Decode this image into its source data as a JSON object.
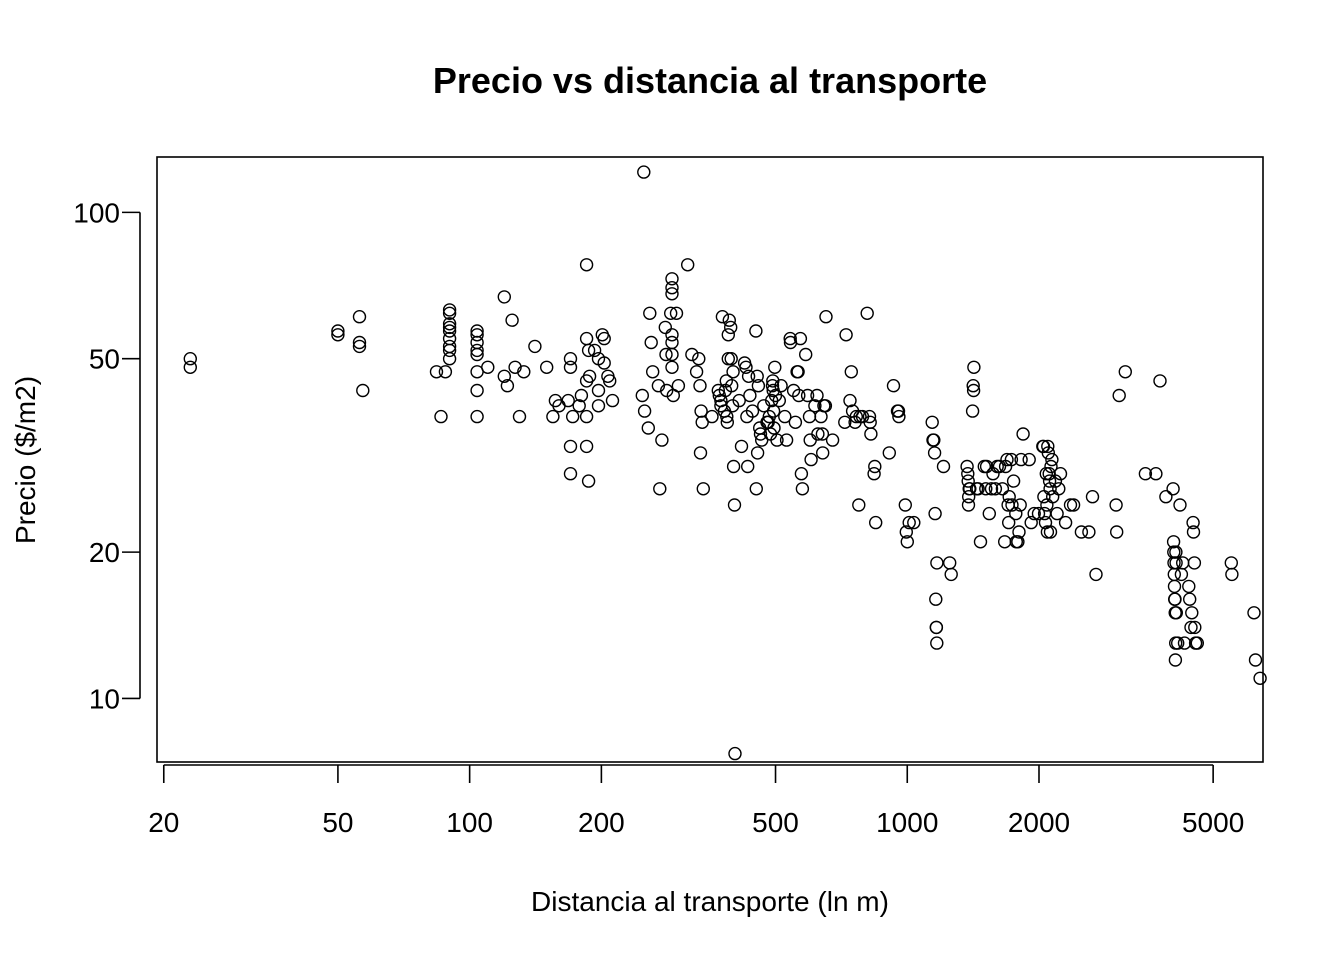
{
  "chart_data": {
    "type": "scatter",
    "title": "Precio vs distancia al transporte",
    "xlabel": "Distancia al transporte (ln m)",
    "ylabel": "Precio ($/m2)",
    "x_scale": "log",
    "y_scale": "log",
    "xlim": [
      19.3,
      6500
    ],
    "ylim": [
      7.4,
      130
    ],
    "x_ticks": [
      20,
      50,
      100,
      200,
      500,
      1000,
      2000,
      5000
    ],
    "x_tick_labels": [
      "20",
      "50",
      "100",
      "200",
      "500",
      "1000",
      "2000",
      "5000"
    ],
    "y_ticks": [
      10,
      20,
      50,
      100
    ],
    "y_tick_labels": [
      "10",
      "20",
      "50",
      "100"
    ],
    "grid": false,
    "marker": "open-circle",
    "point_color": "#000000",
    "points": [
      [
        23,
        50
      ],
      [
        23,
        48
      ],
      [
        50,
        57
      ],
      [
        50,
        56
      ],
      [
        56,
        61
      ],
      [
        56,
        54
      ],
      [
        56,
        53
      ],
      [
        57,
        43
      ],
      [
        84,
        47
      ],
      [
        86,
        38
      ],
      [
        88,
        47
      ],
      [
        90,
        63
      ],
      [
        90,
        62
      ],
      [
        90,
        59
      ],
      [
        90,
        58
      ],
      [
        90,
        57
      ],
      [
        90,
        55
      ],
      [
        90,
        53
      ],
      [
        90,
        52
      ],
      [
        90,
        50
      ],
      [
        104,
        57
      ],
      [
        104,
        56
      ],
      [
        104,
        54
      ],
      [
        104,
        52
      ],
      [
        104,
        51
      ],
      [
        104,
        47
      ],
      [
        104,
        43
      ],
      [
        104,
        38
      ],
      [
        110,
        48
      ],
      [
        120,
        67
      ],
      [
        120,
        46
      ],
      [
        122,
        44
      ],
      [
        125,
        60
      ],
      [
        127,
        48
      ],
      [
        130,
        38
      ],
      [
        133,
        47
      ],
      [
        141,
        53
      ],
      [
        150,
        48
      ],
      [
        155,
        38
      ],
      [
        157,
        41
      ],
      [
        160,
        40
      ],
      [
        168,
        41
      ],
      [
        170,
        50
      ],
      [
        170,
        48
      ],
      [
        172,
        38
      ],
      [
        170,
        33
      ],
      [
        170,
        29
      ],
      [
        178,
        40
      ],
      [
        180,
        42
      ],
      [
        185,
        78
      ],
      [
        185,
        55
      ],
      [
        187,
        52
      ],
      [
        185,
        45
      ],
      [
        188,
        46
      ],
      [
        185,
        38
      ],
      [
        185,
        33
      ],
      [
        187,
        28
      ],
      [
        193,
        52
      ],
      [
        197,
        50
      ],
      [
        197,
        43
      ],
      [
        197,
        40
      ],
      [
        201,
        56
      ],
      [
        203,
        55
      ],
      [
        203,
        49
      ],
      [
        207,
        46
      ],
      [
        209,
        45
      ],
      [
        212,
        41
      ],
      [
        250,
        121
      ],
      [
        248,
        42
      ],
      [
        251,
        39
      ],
      [
        256,
        36
      ],
      [
        258,
        62
      ],
      [
        260,
        54
      ],
      [
        262,
        47
      ],
      [
        270,
        44
      ],
      [
        272,
        27
      ],
      [
        275,
        34
      ],
      [
        280,
        58
      ],
      [
        281,
        51
      ],
      [
        282,
        43
      ],
      [
        288,
        62
      ],
      [
        290,
        73
      ],
      [
        290,
        70
      ],
      [
        290,
        68
      ],
      [
        290,
        56
      ],
      [
        290,
        54
      ],
      [
        290,
        51
      ],
      [
        290,
        48
      ],
      [
        292,
        42
      ],
      [
        297,
        62
      ],
      [
        300,
        44
      ],
      [
        315,
        78
      ],
      [
        322,
        51
      ],
      [
        330,
        47
      ],
      [
        334,
        50
      ],
      [
        336,
        44
      ],
      [
        337,
        32
      ],
      [
        338,
        39
      ],
      [
        340,
        37
      ],
      [
        342,
        27
      ],
      [
        358,
        38
      ],
      [
        370,
        43
      ],
      [
        372,
        42
      ],
      [
        375,
        41
      ],
      [
        375,
        40
      ],
      [
        378,
        61
      ],
      [
        382,
        39
      ],
      [
        384,
        43
      ],
      [
        386,
        45
      ],
      [
        387,
        38
      ],
      [
        388,
        37
      ],
      [
        390,
        50
      ],
      [
        390,
        56
      ],
      [
        392,
        60
      ],
      [
        395,
        58
      ],
      [
        396,
        50
      ],
      [
        397,
        44
      ],
      [
        399,
        40
      ],
      [
        400,
        47
      ],
      [
        401,
        30
      ],
      [
        403,
        25
      ],
      [
        404,
        7.7
      ],
      [
        413,
        41
      ],
      [
        418,
        33
      ],
      [
        425,
        49
      ],
      [
        428,
        48
      ],
      [
        430,
        38
      ],
      [
        432,
        30
      ],
      [
        434,
        46
      ],
      [
        437,
        42
      ],
      [
        443,
        39
      ],
      [
        451,
        57
      ],
      [
        452,
        27
      ],
      [
        454,
        46
      ],
      [
        455,
        32
      ],
      [
        457,
        44
      ],
      [
        460,
        36
      ],
      [
        462,
        35
      ],
      [
        465,
        34
      ],
      [
        470,
        40
      ],
      [
        478,
        37
      ],
      [
        481,
        37
      ],
      [
        484,
        38
      ],
      [
        487,
        35
      ],
      [
        490,
        41
      ],
      [
        492,
        44
      ],
      [
        493,
        45
      ],
      [
        494,
        43
      ],
      [
        495,
        39
      ],
      [
        496,
        36
      ],
      [
        498,
        48
      ],
      [
        500,
        42
      ],
      [
        504,
        34
      ],
      [
        510,
        41
      ],
      [
        515,
        44
      ],
      [
        525,
        38
      ],
      [
        530,
        34
      ],
      [
        540,
        55
      ],
      [
        541,
        54
      ],
      [
        550,
        43
      ],
      [
        555,
        37
      ],
      [
        560,
        47
      ],
      [
        563,
        47
      ],
      [
        565,
        42
      ],
      [
        570,
        55
      ],
      [
        573,
        29
      ],
      [
        576,
        27
      ],
      [
        586,
        51
      ],
      [
        592,
        42
      ],
      [
        598,
        38
      ],
      [
        600,
        34
      ],
      [
        603,
        31
      ],
      [
        615,
        40
      ],
      [
        622,
        42
      ],
      [
        625,
        35
      ],
      [
        635,
        38
      ],
      [
        640,
        35
      ],
      [
        641,
        32
      ],
      [
        645,
        40
      ],
      [
        650,
        40
      ],
      [
        652,
        61
      ],
      [
        675,
        34
      ],
      [
        720,
        37
      ],
      [
        725,
        56
      ],
      [
        740,
        41
      ],
      [
        745,
        47
      ],
      [
        750,
        39
      ],
      [
        760,
        37
      ],
      [
        765,
        38
      ],
      [
        775,
        25
      ],
      [
        780,
        38
      ],
      [
        790,
        38
      ],
      [
        810,
        62
      ],
      [
        820,
        38
      ],
      [
        823,
        37
      ],
      [
        826,
        35
      ],
      [
        840,
        29
      ],
      [
        843,
        30
      ],
      [
        847,
        23
      ],
      [
        910,
        32
      ],
      [
        930,
        44
      ],
      [
        950,
        39
      ],
      [
        955,
        39
      ],
      [
        957,
        38
      ],
      [
        990,
        25
      ],
      [
        995,
        22
      ],
      [
        1000,
        21
      ],
      [
        1010,
        23
      ],
      [
        1035,
        23
      ],
      [
        1140,
        37
      ],
      [
        1145,
        34
      ],
      [
        1150,
        34
      ],
      [
        1155,
        32
      ],
      [
        1158,
        24
      ],
      [
        1162,
        16
      ],
      [
        1165,
        14
      ],
      [
        1166,
        14
      ],
      [
        1168,
        13
      ],
      [
        1169,
        19
      ],
      [
        1210,
        30
      ],
      [
        1250,
        19
      ],
      [
        1260,
        18
      ],
      [
        1370,
        30
      ],
      [
        1375,
        29
      ],
      [
        1378,
        28
      ],
      [
        1380,
        25
      ],
      [
        1382,
        26
      ],
      [
        1385,
        27
      ],
      [
        1390,
        27
      ],
      [
        1410,
        39
      ],
      [
        1415,
        44
      ],
      [
        1418,
        43
      ],
      [
        1420,
        48
      ],
      [
        1440,
        27
      ],
      [
        1452,
        27
      ],
      [
        1470,
        21
      ],
      [
        1500,
        30
      ],
      [
        1512,
        27
      ],
      [
        1518,
        30
      ],
      [
        1540,
        24
      ],
      [
        1558,
        27
      ],
      [
        1570,
        29
      ],
      [
        1590,
        27
      ],
      [
        1605,
        30
      ],
      [
        1625,
        30
      ],
      [
        1650,
        27
      ],
      [
        1670,
        21
      ],
      [
        1678,
        30
      ],
      [
        1690,
        31
      ],
      [
        1700,
        25
      ],
      [
        1705,
        23
      ],
      [
        1710,
        26
      ],
      [
        1730,
        31
      ],
      [
        1735,
        25
      ],
      [
        1750,
        28
      ],
      [
        1770,
        24
      ],
      [
        1775,
        21
      ],
      [
        1790,
        21
      ],
      [
        1800,
        22
      ],
      [
        1812,
        25
      ],
      [
        1820,
        31
      ],
      [
        1840,
        35
      ],
      [
        1900,
        31
      ],
      [
        1920,
        23
      ],
      [
        1950,
        24
      ],
      [
        1995,
        24
      ],
      [
        2040,
        33
      ],
      [
        2048,
        33
      ],
      [
        2052,
        26
      ],
      [
        2060,
        24
      ],
      [
        2070,
        23
      ],
      [
        2078,
        29
      ],
      [
        2085,
        25
      ],
      [
        2090,
        22
      ],
      [
        2095,
        33
      ],
      [
        2100,
        32
      ],
      [
        2110,
        29
      ],
      [
        2115,
        28
      ],
      [
        2120,
        27
      ],
      [
        2125,
        22
      ],
      [
        2130,
        30
      ],
      [
        2140,
        31
      ],
      [
        2150,
        26
      ],
      [
        2180,
        28
      ],
      [
        2200,
        24
      ],
      [
        2220,
        27
      ],
      [
        2240,
        29
      ],
      [
        2300,
        23
      ],
      [
        2360,
        25
      ],
      [
        2400,
        25
      ],
      [
        2500,
        22
      ],
      [
        2600,
        22
      ],
      [
        2650,
        26
      ],
      [
        2700,
        18
      ],
      [
        3000,
        25
      ],
      [
        3010,
        22
      ],
      [
        3050,
        42
      ],
      [
        3150,
        47
      ],
      [
        3500,
        29
      ],
      [
        3700,
        29
      ],
      [
        3780,
        45
      ],
      [
        3900,
        26
      ],
      [
        4050,
        27
      ],
      [
        4060,
        21
      ],
      [
        4065,
        20
      ],
      [
        4070,
        19
      ],
      [
        4075,
        18
      ],
      [
        4080,
        17
      ],
      [
        4085,
        16
      ],
      [
        4090,
        16
      ],
      [
        4095,
        15
      ],
      [
        4100,
        12
      ],
      [
        4105,
        13
      ],
      [
        4110,
        20
      ],
      [
        4115,
        19
      ],
      [
        4120,
        15
      ],
      [
        4150,
        13
      ],
      [
        4200,
        25
      ],
      [
        4230,
        18
      ],
      [
        4260,
        19
      ],
      [
        4300,
        13
      ],
      [
        4400,
        17
      ],
      [
        4420,
        16
      ],
      [
        4450,
        14
      ],
      [
        4470,
        15
      ],
      [
        4500,
        23
      ],
      [
        4510,
        22
      ],
      [
        4530,
        19
      ],
      [
        4540,
        14
      ],
      [
        4560,
        13
      ],
      [
        4600,
        13
      ],
      [
        5500,
        19
      ],
      [
        5520,
        18
      ],
      [
        6200,
        15
      ],
      [
        6250,
        12
      ],
      [
        6400,
        11
      ]
    ]
  }
}
